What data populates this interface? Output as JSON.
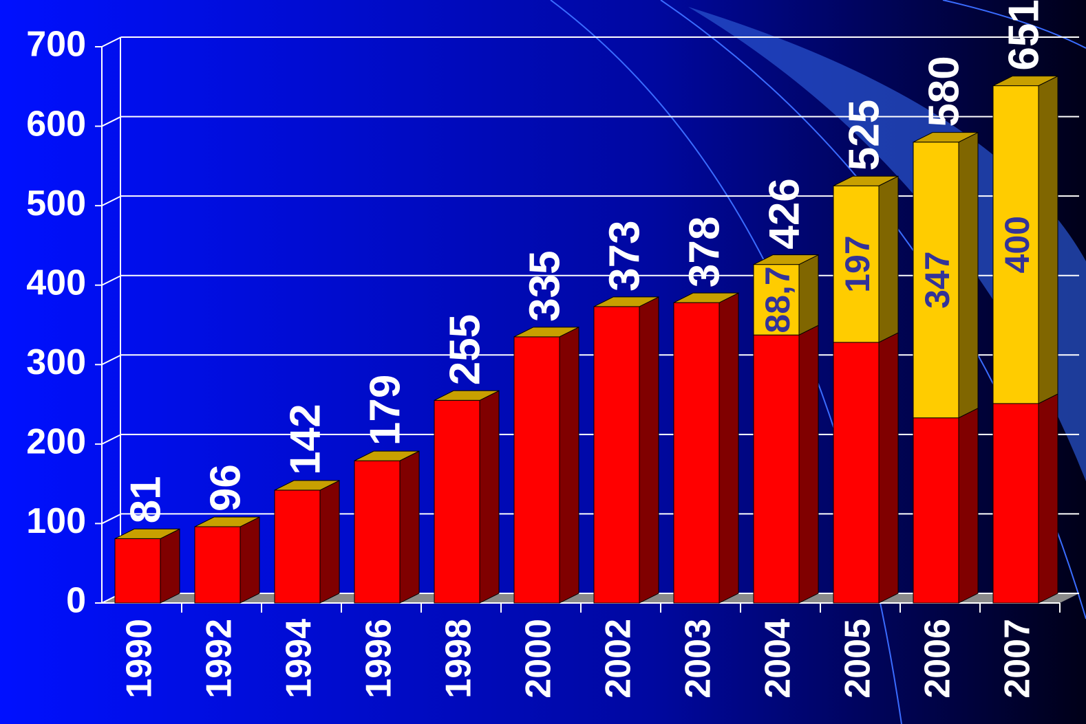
{
  "chart_data": {
    "type": "bar",
    "stacked": true,
    "categories": [
      "1990",
      "1992",
      "1994",
      "1996",
      "1998",
      "2000",
      "2002",
      "2003",
      "2004",
      "2005",
      "2006",
      "2007"
    ],
    "series": [
      {
        "color": "#ff0000",
        "values": [
          81,
          96,
          142,
          179,
          255,
          335,
          373,
          378,
          337.3,
          328,
          233,
          251
        ]
      },
      {
        "color": "#ffcc00",
        "values": [
          null,
          null,
          null,
          null,
          null,
          null,
          null,
          null,
          88.7,
          197,
          347,
          400
        ],
        "value_labels": [
          null,
          null,
          null,
          null,
          null,
          null,
          null,
          null,
          "88,7",
          "197",
          "347",
          "400"
        ]
      }
    ],
    "totals": [
      81,
      96,
      142,
      179,
      255,
      335,
      373,
      378,
      426,
      525,
      580,
      651
    ],
    "ylim": [
      0,
      700
    ],
    "yticks": [
      0,
      100,
      200,
      300,
      400,
      500,
      600,
      700
    ],
    "grid": true
  }
}
